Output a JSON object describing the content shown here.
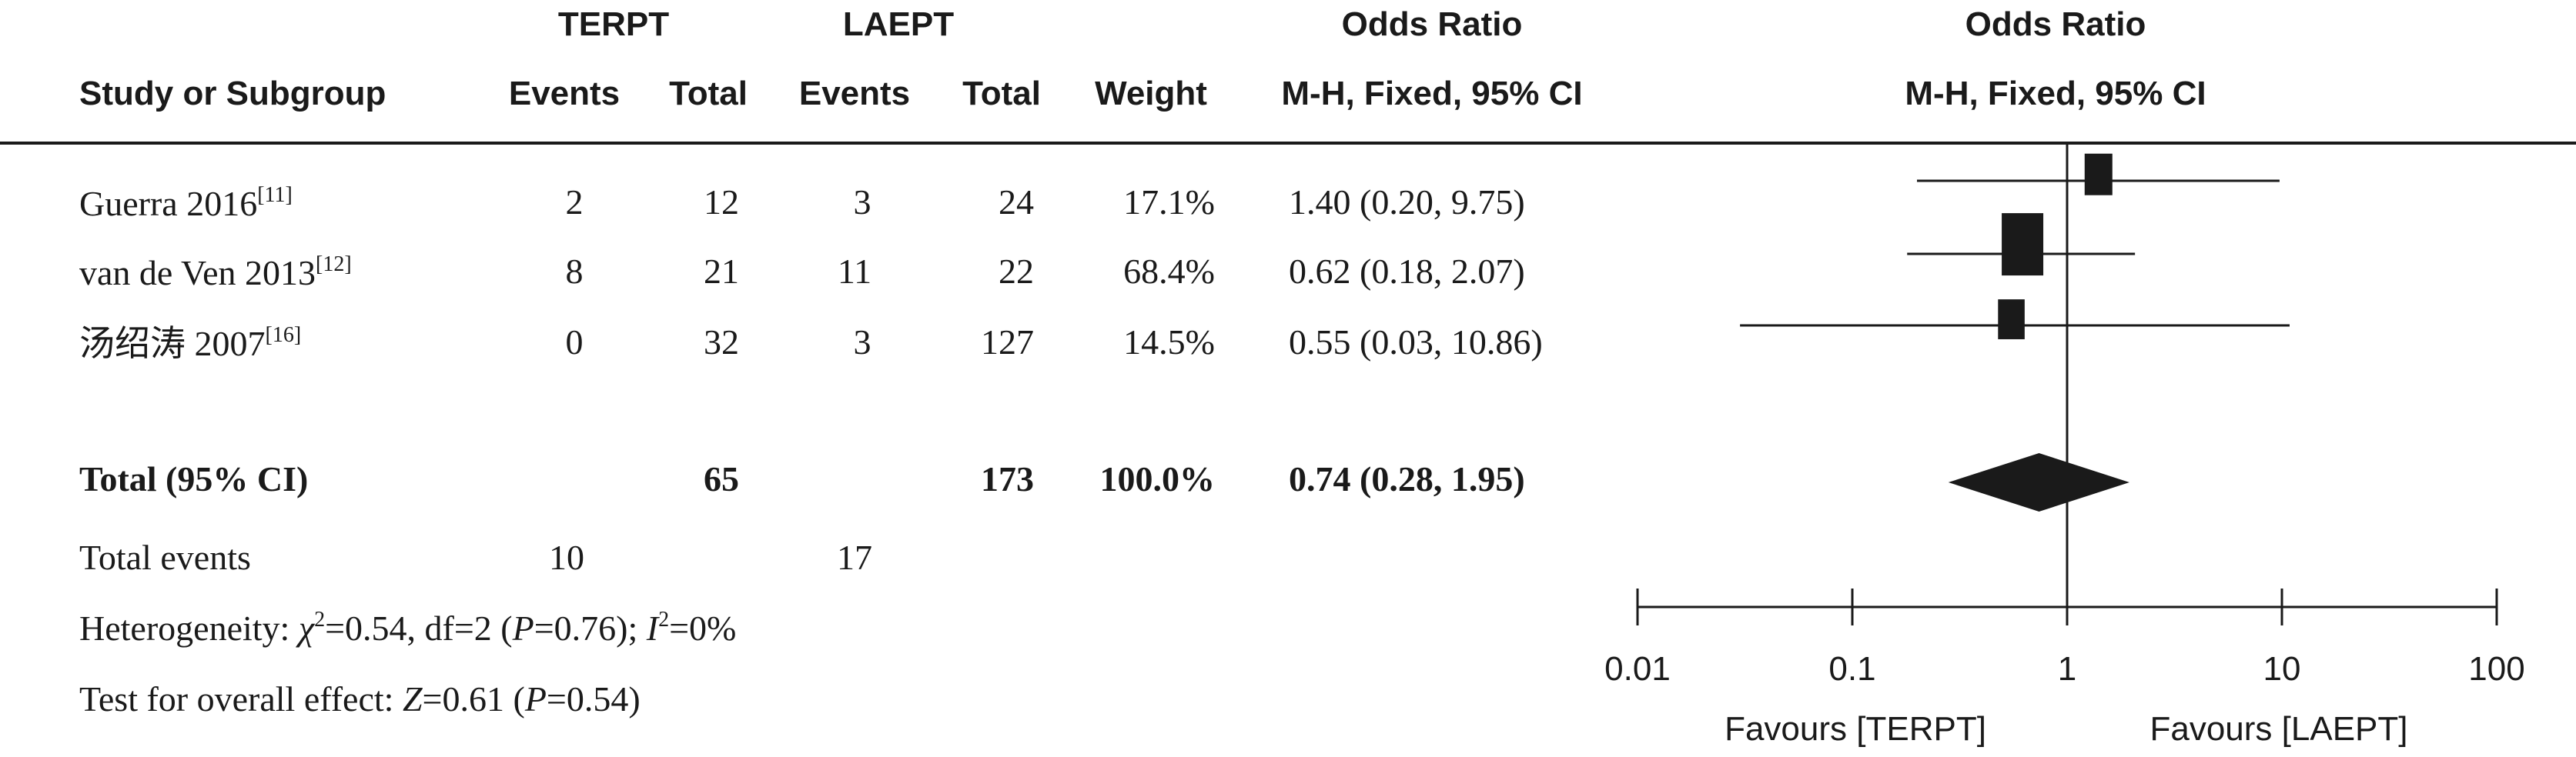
{
  "header": {
    "group1": "TERPT",
    "group2": "LAEPT",
    "or_left": "Odds Ratio",
    "or_right": "Odds Ratio",
    "study_col": "Study or Subgroup",
    "events1": "Events",
    "total1": "Total",
    "events2": "Events",
    "total2": "Total",
    "weight": "Weight",
    "method_left": "M-H, Fixed, 95% CI",
    "method_right": "M-H, Fixed, 95% CI"
  },
  "studies": [
    {
      "name": "Guerra 2016",
      "ref": "[11]",
      "e1": "2",
      "t1": "12",
      "e2": "3",
      "t2": "24",
      "weight": "17.1%",
      "ci": "1.40 (0.20, 9.75)"
    },
    {
      "name": "van de Ven 2013",
      "ref": "[12]",
      "e1": "8",
      "t1": "21",
      "e2": "11",
      "t2": "22",
      "weight": "68.4%",
      "ci": "0.62 (0.18, 2.07)"
    },
    {
      "name": "汤绍涛 2007",
      "ref": "[16]",
      "e1": "0",
      "t1": "32",
      "e2": "3",
      "t2": "127",
      "weight": "14.5%",
      "ci": "0.55 (0.03, 10.86)"
    }
  ],
  "total": {
    "label": "Total (95% CI)",
    "t1": "65",
    "t2": "173",
    "weight": "100.0%",
    "ci": "0.74 (0.28, 1.95)"
  },
  "total_events": {
    "label": "Total events",
    "e1": "10",
    "e2": "17"
  },
  "heterogeneity": {
    "prefix": "Heterogeneity: ",
    "chi": "χ",
    "chi_sup": "2",
    "chi_val": "=0.54, df=2 (",
    "p1": "P",
    "p1_val": "=0.76); ",
    "i": "I",
    "i_sup": "2",
    "i_val": "=0%"
  },
  "overall": {
    "prefix": "Test for overall effect: ",
    "z": "Z",
    "z_val": "=0.61 (",
    "p": "P",
    "p_val": "=0.54)"
  },
  "chart_data": {
    "type": "forest",
    "scale": "log",
    "xlim": [
      0.01,
      100
    ],
    "ticks": [
      "0.01",
      "0.1",
      "1",
      "10",
      "100"
    ],
    "tick_values": [
      0.01,
      0.1,
      1,
      10,
      100
    ],
    "null_line": 1,
    "xlabel_left": "Favours [TERPT]",
    "xlabel_right": "Favours [LAEPT]",
    "studies": [
      {
        "or": 1.4,
        "lo": 0.2,
        "hi": 9.75,
        "weight": 17.1
      },
      {
        "or": 0.62,
        "lo": 0.18,
        "hi": 2.07,
        "weight": 68.4
      },
      {
        "or": 0.55,
        "lo": 0.03,
        "hi": 10.86,
        "weight": 14.5
      }
    ],
    "pooled": {
      "or": 0.74,
      "lo": 0.28,
      "hi": 1.95
    }
  }
}
